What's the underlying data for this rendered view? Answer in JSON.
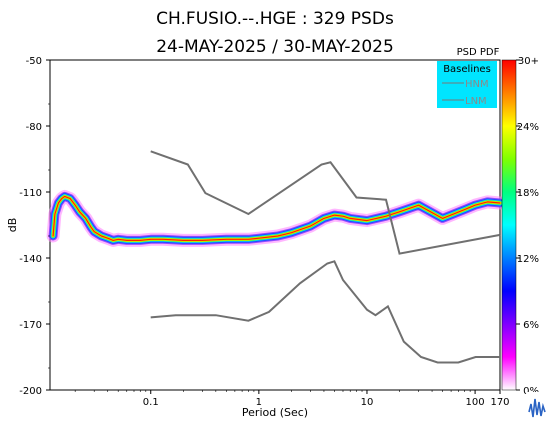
{
  "chart_data": {
    "type": "heatmap",
    "title_line1": "CH.FUSIO.--.HGE : 329 PSDs",
    "title_line2": "24-MAY-2025 / 30-MAY-2025",
    "xlabel": "Period (Sec)",
    "ylabel": "dB",
    "x_scale": "log",
    "xlim": [
      0.0117,
      170
    ],
    "ylim": [
      -200,
      -50
    ],
    "x_ticks": [
      {
        "value": 0.1,
        "label": "0.1"
      },
      {
        "value": 1,
        "label": "1"
      },
      {
        "value": 10,
        "label": "10"
      },
      {
        "value": 100,
        "label": "100"
      },
      {
        "value": 170,
        "label": "170"
      }
    ],
    "y_ticks": [
      -50,
      -80,
      -110,
      -140,
      -170,
      -200
    ],
    "grid": false,
    "legend": {
      "title": "Baselines",
      "entries": [
        {
          "name": "HNM",
          "color": "#555555"
        },
        {
          "name": "LNM",
          "color": "#555555"
        }
      ],
      "placement": "top-right",
      "background": "#00e5ff"
    },
    "colorbar": {
      "title": "PSD PDF",
      "ticks": [
        "30+",
        "24%",
        "18%",
        "12%",
        "6%",
        "0%"
      ],
      "colors": [
        "#ffffff",
        "#ff00ff",
        "#7f00ff",
        "#0000ff",
        "#0080ff",
        "#00ffff",
        "#00ff80",
        "#80ff00",
        "#ffff00",
        "#ff8000",
        "#ff0000"
      ]
    },
    "baseline_color": "#707070",
    "series": [
      {
        "name": "HNM",
        "x": [
          0.1,
          0.22,
          0.32,
          0.8,
          3.8,
          4.6,
          8,
          15,
          20,
          170
        ],
        "y": [
          -91.5,
          -97.5,
          -110.5,
          -120.0,
          -97.5,
          -96.5,
          -112.5,
          -113.5,
          -138.0,
          -129.5
        ]
      },
      {
        "name": "LNM",
        "x": [
          0.1,
          0.17,
          0.4,
          0.8,
          1.24,
          2.4,
          4.3,
          5,
          6,
          10,
          12,
          15.6,
          21.9,
          31.6,
          45,
          70,
          101,
          154,
          170
        ],
        "y": [
          -167.0,
          -166.0,
          -166.0,
          -168.5,
          -164.5,
          -151.5,
          -142.5,
          -141.5,
          -150.0,
          -163.5,
          -166.0,
          -162.0,
          -178.0,
          -185.0,
          -187.5,
          -187.5,
          -185.0,
          -185.0,
          -185.0
        ]
      },
      {
        "name": "mode",
        "x": [
          0.0125,
          0.013,
          0.014,
          0.015,
          0.016,
          0.018,
          0.02,
          0.022,
          0.025,
          0.028,
          0.03,
          0.035,
          0.04,
          0.045,
          0.05,
          0.06,
          0.07,
          0.08,
          0.1,
          0.13,
          0.2,
          0.3,
          0.5,
          0.8,
          1,
          1.5,
          2,
          3,
          4,
          5,
          6,
          7,
          10,
          15,
          20,
          30,
          50,
          80,
          100,
          130,
          170
        ],
        "y": [
          -130.0,
          -120.0,
          -115.0,
          -113.0,
          -112.0,
          -113.0,
          -116.0,
          -119.0,
          -122.0,
          -126.0,
          -128.0,
          -130.0,
          -131.0,
          -132.0,
          -131.5,
          -132.0,
          -132.0,
          -132.0,
          -131.5,
          -131.5,
          -132.0,
          -132.0,
          -131.5,
          -131.5,
          -131.0,
          -130.0,
          -128.5,
          -125.5,
          -122.0,
          -120.5,
          -121.0,
          -122.0,
          -123.0,
          -121.0,
          -119.0,
          -116.0,
          -122.0,
          -118.0,
          -116.0,
          -114.5,
          -115.0
        ]
      }
    ]
  }
}
